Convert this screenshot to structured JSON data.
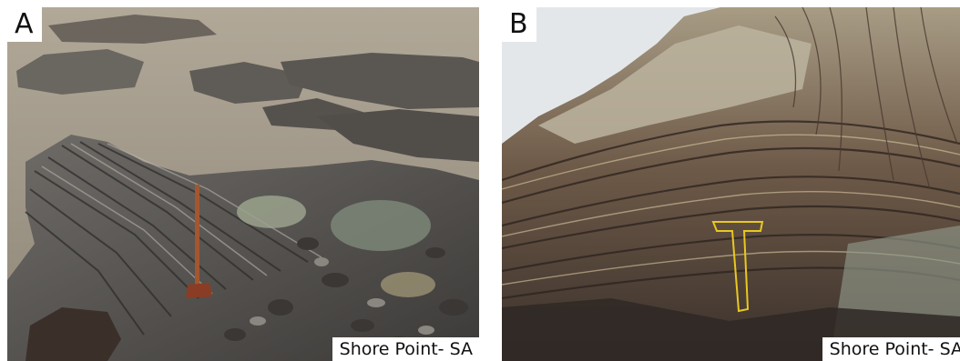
{
  "panels": [
    {
      "label": "A",
      "caption": "Shore Point- SA"
    },
    {
      "label": "B",
      "caption": "Shore Point- SA"
    }
  ],
  "colors": {
    "water": "#9c9385",
    "rock_dark": "#4d4a47",
    "rock_grey": "#7f7d7a",
    "rock_green": "#8f9a86",
    "hammer_handle": "#a5562e",
    "hammer_outline": "#e8c81f",
    "sky": "#e4e7ea"
  }
}
